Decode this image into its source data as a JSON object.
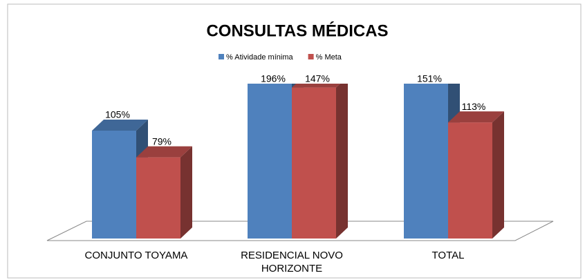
{
  "chart_data": {
    "type": "bar3d",
    "title": "CONSULTAS MÉDICAS",
    "categories": [
      "CONJUNTO TOYAMA",
      "RESIDENCIAL NOVO HORIZONTE",
      "TOTAL"
    ],
    "series": [
      {
        "name": "% Atividade mínima",
        "color": "#4f81bd",
        "values": [
          105,
          196,
          151
        ],
        "value_labels": [
          "105%",
          "196%",
          "151%"
        ]
      },
      {
        "name": "% Meta",
        "color": "#c0504d",
        "values": [
          79,
          147,
          113
        ],
        "value_labels": [
          "79%",
          "147%",
          "113%"
        ]
      }
    ],
    "ylim": [
      0,
      140
    ],
    "legend": "top"
  }
}
